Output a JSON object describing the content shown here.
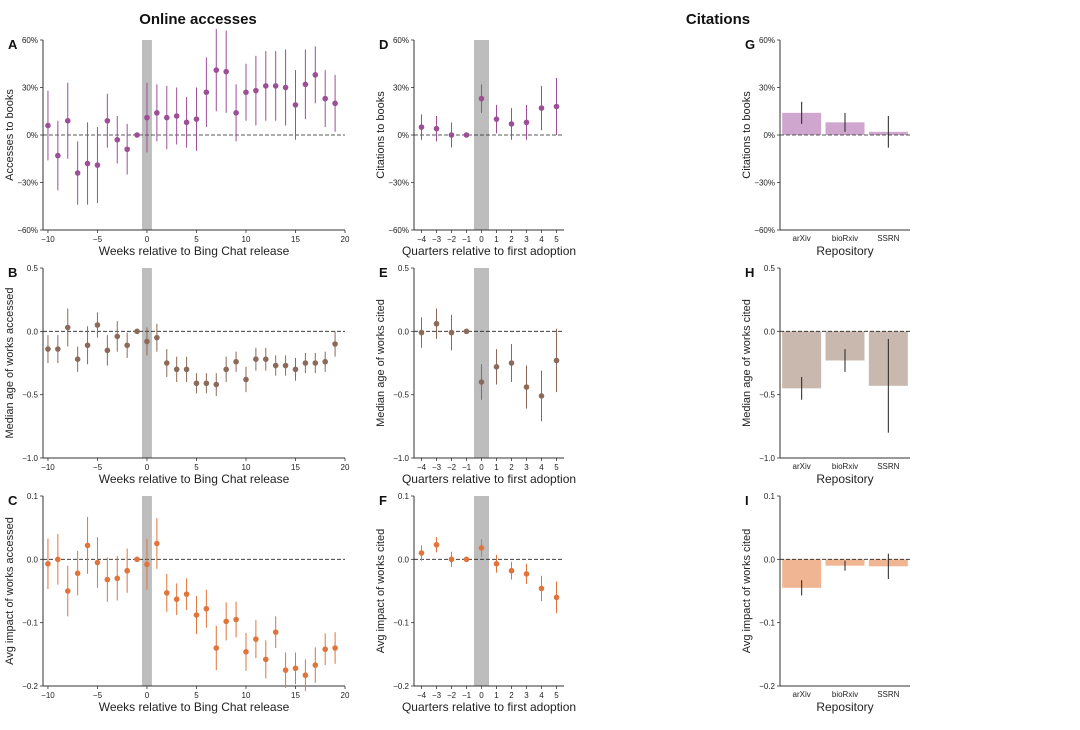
{
  "headers": {
    "left": "Online accesses",
    "right": "Citations"
  },
  "chart_data": [
    {
      "id": "A",
      "type": "scatter",
      "error_bars": true,
      "xlabel": "Weeks relative to Bing Chat release",
      "ylabel": "Accesses to books",
      "xlim": [
        -10.5,
        20
      ],
      "xticks": [
        -10,
        -5,
        0,
        5,
        10,
        15,
        20
      ],
      "xtick_labels": [
        "−10",
        "−5",
        "0",
        "5",
        "10",
        "15",
        "20"
      ],
      "ylim": [
        -60,
        60
      ],
      "yticks": [
        -60,
        -30,
        0,
        30,
        60
      ],
      "ytick_labels": [
        "−60%",
        "−30%",
        "0%",
        "30%",
        "60%"
      ],
      "shade": [
        -0.5,
        0.5
      ],
      "color": "#9c4f96",
      "x": [
        -10,
        -9,
        -8,
        -7,
        -6,
        -5,
        -4,
        -3,
        -2,
        -1,
        0,
        1,
        2,
        3,
        4,
        5,
        6,
        7,
        8,
        9,
        10,
        11,
        12,
        13,
        14,
        15,
        16,
        17,
        18,
        19
      ],
      "y": [
        6,
        -13,
        9,
        -24,
        -18,
        -19,
        9,
        -3,
        -9,
        0,
        11,
        14,
        11,
        12,
        8,
        10,
        27,
        41,
        40,
        14,
        27,
        28,
        31,
        31,
        30,
        19,
        32,
        38,
        23,
        20
      ],
      "err": [
        22,
        22,
        24,
        20,
        26,
        24,
        17,
        15,
        16,
        0,
        22,
        18,
        20,
        18,
        16,
        20,
        22,
        26,
        26,
        18,
        18,
        22,
        22,
        22,
        24,
        22,
        22,
        18,
        18,
        18
      ]
    },
    {
      "id": "D",
      "type": "scatter",
      "error_bars": true,
      "xlabel": "Quarters relative to first adoption",
      "ylabel": "Citations to books",
      "xlim": [
        -4.5,
        5.5
      ],
      "xticks": [
        -4,
        -3,
        -2,
        -1,
        0,
        1,
        2,
        3,
        4,
        5
      ],
      "xtick_labels": [
        "−4",
        "−3",
        "−2",
        "−1",
        "0",
        "1",
        "2",
        "3",
        "4",
        "5"
      ],
      "ylim": [
        -60,
        60
      ],
      "yticks": [
        -60,
        -30,
        0,
        30,
        60
      ],
      "ytick_labels": [
        "−60%",
        "−30%",
        "0%",
        "30%",
        "60%"
      ],
      "shade": [
        -0.5,
        0.5
      ],
      "color": "#9c4f96",
      "x": [
        -4,
        -3,
        -2,
        -1,
        0,
        1,
        2,
        3,
        4,
        5
      ],
      "y": [
        5,
        4,
        0,
        0,
        23,
        10,
        7,
        8,
        17,
        18
      ],
      "err": [
        8,
        8,
        8,
        0,
        9,
        9,
        10,
        11,
        14,
        18
      ]
    },
    {
      "id": "G",
      "type": "bar",
      "error_bars": true,
      "xlabel": "Repository",
      "ylabel": "Citations to books",
      "categories": [
        "arXiv",
        "bioRxiv",
        "SSRN"
      ],
      "values": [
        14,
        8,
        2
      ],
      "err": [
        7,
        6,
        10
      ],
      "ylim": [
        -60,
        60
      ],
      "yticks": [
        -60,
        -30,
        0,
        30,
        60
      ],
      "ytick_labels": [
        "−60%",
        "−30%",
        "0%",
        "30%",
        "60%"
      ],
      "color": "#cfa6cd"
    },
    {
      "id": "B",
      "type": "scatter",
      "error_bars": true,
      "xlabel": "Weeks relative to Bing Chat release",
      "ylabel": "Median age of works accessed",
      "xlim": [
        -10.5,
        20
      ],
      "xticks": [
        -10,
        -5,
        0,
        5,
        10,
        15,
        20
      ],
      "xtick_labels": [
        "−10",
        "−5",
        "0",
        "5",
        "10",
        "15",
        "20"
      ],
      "ylim": [
        -1,
        0.5
      ],
      "yticks": [
        -1,
        -0.5,
        0,
        0.5
      ],
      "ytick_labels": [
        "−1.0",
        "−0.5",
        "0.0",
        "0.5"
      ],
      "shade": [
        -0.5,
        0.5
      ],
      "color": "#8c6a5a",
      "x": [
        -10,
        -9,
        -8,
        -7,
        -6,
        -5,
        -4,
        -3,
        -2,
        -1,
        0,
        1,
        2,
        3,
        4,
        5,
        6,
        7,
        8,
        9,
        10,
        11,
        12,
        13,
        14,
        15,
        16,
        17,
        18,
        19
      ],
      "y": [
        -0.14,
        -0.14,
        0.03,
        -0.22,
        -0.11,
        0.05,
        -0.15,
        -0.04,
        -0.11,
        0.0,
        -0.08,
        -0.05,
        -0.25,
        -0.3,
        -0.3,
        -0.41,
        -0.41,
        -0.42,
        -0.3,
        -0.24,
        -0.38,
        -0.22,
        -0.22,
        -0.27,
        -0.27,
        -0.3,
        -0.25,
        -0.25,
        -0.24,
        -0.1
      ],
      "err": [
        0.11,
        0.11,
        0.15,
        0.1,
        0.15,
        0.1,
        0.12,
        0.12,
        0.1,
        0.0,
        0.11,
        0.11,
        0.11,
        0.1,
        0.1,
        0.08,
        0.08,
        0.09,
        0.1,
        0.08,
        0.1,
        0.09,
        0.09,
        0.08,
        0.08,
        0.09,
        0.08,
        0.08,
        0.08,
        0.1
      ]
    },
    {
      "id": "E",
      "type": "scatter",
      "error_bars": true,
      "xlabel": "Quarters relative to first adoption",
      "ylabel": "Median age of works cited",
      "xlim": [
        -4.5,
        5.5
      ],
      "xticks": [
        -4,
        -3,
        -2,
        -1,
        0,
        1,
        2,
        3,
        4,
        5
      ],
      "xtick_labels": [
        "−4",
        "−3",
        "−2",
        "−1",
        "0",
        "1",
        "2",
        "3",
        "4",
        "5"
      ],
      "ylim": [
        -1,
        0.5
      ],
      "yticks": [
        -1,
        -0.5,
        0,
        0.5
      ],
      "ytick_labels": [
        "−1.0",
        "−0.5",
        "0.0",
        "0.5"
      ],
      "shade": [
        -0.5,
        0.5
      ],
      "color": "#8c6a5a",
      "x": [
        -4,
        -3,
        -2,
        -1,
        0,
        1,
        2,
        3,
        4,
        5
      ],
      "y": [
        -0.01,
        0.06,
        -0.01,
        0.0,
        -0.4,
        -0.28,
        -0.25,
        -0.44,
        -0.51,
        -0.23
      ],
      "err": [
        0.12,
        0.12,
        0.14,
        0.0,
        0.14,
        0.14,
        0.15,
        0.17,
        0.2,
        0.25
      ]
    },
    {
      "id": "H",
      "type": "bar",
      "error_bars": true,
      "xlabel": "Repository",
      "ylabel": "Median age of works cited",
      "categories": [
        "arXiv",
        "bioRxiv",
        "SSRN"
      ],
      "values": [
        -0.45,
        -0.23,
        -0.43
      ],
      "err": [
        0.09,
        0.09,
        0.37
      ],
      "ylim": [
        -1,
        0.5
      ],
      "yticks": [
        -1,
        -0.5,
        0,
        0.5
      ],
      "ytick_labels": [
        "−1.0",
        "−0.5",
        "0.0",
        "0.5"
      ],
      "color": "#c8b8ad"
    },
    {
      "id": "C",
      "type": "scatter",
      "error_bars": true,
      "xlabel": "Weeks relative to Bing Chat release",
      "ylabel": "Avg impact of works accessed",
      "xlim": [
        -10.5,
        20
      ],
      "xticks": [
        -10,
        -5,
        0,
        5,
        10,
        15,
        20
      ],
      "xtick_labels": [
        "−10",
        "−5",
        "0",
        "5",
        "10",
        "15",
        "20"
      ],
      "ylim": [
        -0.2,
        0.1
      ],
      "yticks": [
        -0.2,
        -0.1,
        0,
        0.1
      ],
      "ytick_labels": [
        "−0.2",
        "−0.1",
        "0.0",
        "0.1"
      ],
      "shade": [
        -0.5,
        0.5
      ],
      "color": "#e0743a",
      "x": [
        -10,
        -9,
        -8,
        -7,
        -6,
        -5,
        -4,
        -3,
        -2,
        -1,
        0,
        1,
        2,
        3,
        4,
        5,
        6,
        7,
        8,
        9,
        10,
        11,
        12,
        13,
        14,
        15,
        16,
        17,
        18,
        19
      ],
      "y": [
        -0.007,
        0.0,
        -0.05,
        -0.022,
        0.022,
        -0.005,
        -0.032,
        -0.03,
        -0.018,
        0.0,
        -0.008,
        0.025,
        -0.053,
        -0.063,
        -0.055,
        -0.088,
        -0.078,
        -0.14,
        -0.098,
        -0.095,
        -0.146,
        -0.126,
        -0.158,
        -0.115,
        -0.175,
        -0.172,
        -0.183,
        -0.167,
        -0.142,
        -0.14
      ],
      "err": [
        0.04,
        0.04,
        0.04,
        0.035,
        0.045,
        0.04,
        0.035,
        0.035,
        0.035,
        0.0,
        0.04,
        0.04,
        0.03,
        0.025,
        0.025,
        0.03,
        0.03,
        0.035,
        0.03,
        0.028,
        0.03,
        0.03,
        0.03,
        0.025,
        0.028,
        0.025,
        0.025,
        0.028,
        0.025,
        0.025
      ]
    },
    {
      "id": "F",
      "type": "scatter",
      "error_bars": true,
      "xlabel": "Quarters relative to first adoption",
      "ylabel": "Avg impact of works cited",
      "xlim": [
        -4.5,
        5.5
      ],
      "xticks": [
        -4,
        -3,
        -2,
        -1,
        0,
        1,
        2,
        3,
        4,
        5
      ],
      "xtick_labels": [
        "−4",
        "−3",
        "−2",
        "−1",
        "0",
        "1",
        "2",
        "3",
        "4",
        "5"
      ],
      "ylim": [
        -0.2,
        0.1
      ],
      "yticks": [
        -0.2,
        -0.1,
        0,
        0.1
      ],
      "ytick_labels": [
        "−0.2",
        "−0.1",
        "0.0",
        "0.1"
      ],
      "shade": [
        -0.5,
        0.5
      ],
      "color": "#e0743a",
      "x": [
        -4,
        -3,
        -2,
        -1,
        0,
        1,
        2,
        3,
        4,
        5
      ],
      "y": [
        0.01,
        0.023,
        0.0,
        0.0,
        0.018,
        -0.007,
        -0.018,
        -0.023,
        -0.046,
        -0.06
      ],
      "err": [
        0.012,
        0.012,
        0.012,
        0.0,
        0.014,
        0.014,
        0.014,
        0.016,
        0.02,
        0.025
      ]
    },
    {
      "id": "I",
      "type": "bar",
      "error_bars": true,
      "xlabel": "Repository",
      "ylabel": "Avg impact of works cited",
      "categories": [
        "arXiv",
        "bioRxiv",
        "SSRN"
      ],
      "values": [
        -0.045,
        -0.01,
        -0.011
      ],
      "err": [
        0.012,
        0.008,
        0.02
      ],
      "ylim": [
        -0.2,
        0.1
      ],
      "yticks": [
        -0.2,
        -0.1,
        0,
        0.1
      ],
      "ytick_labels": [
        "−0.2",
        "−0.1",
        "0.0",
        "0.1"
      ],
      "color": "#f0b592"
    }
  ]
}
